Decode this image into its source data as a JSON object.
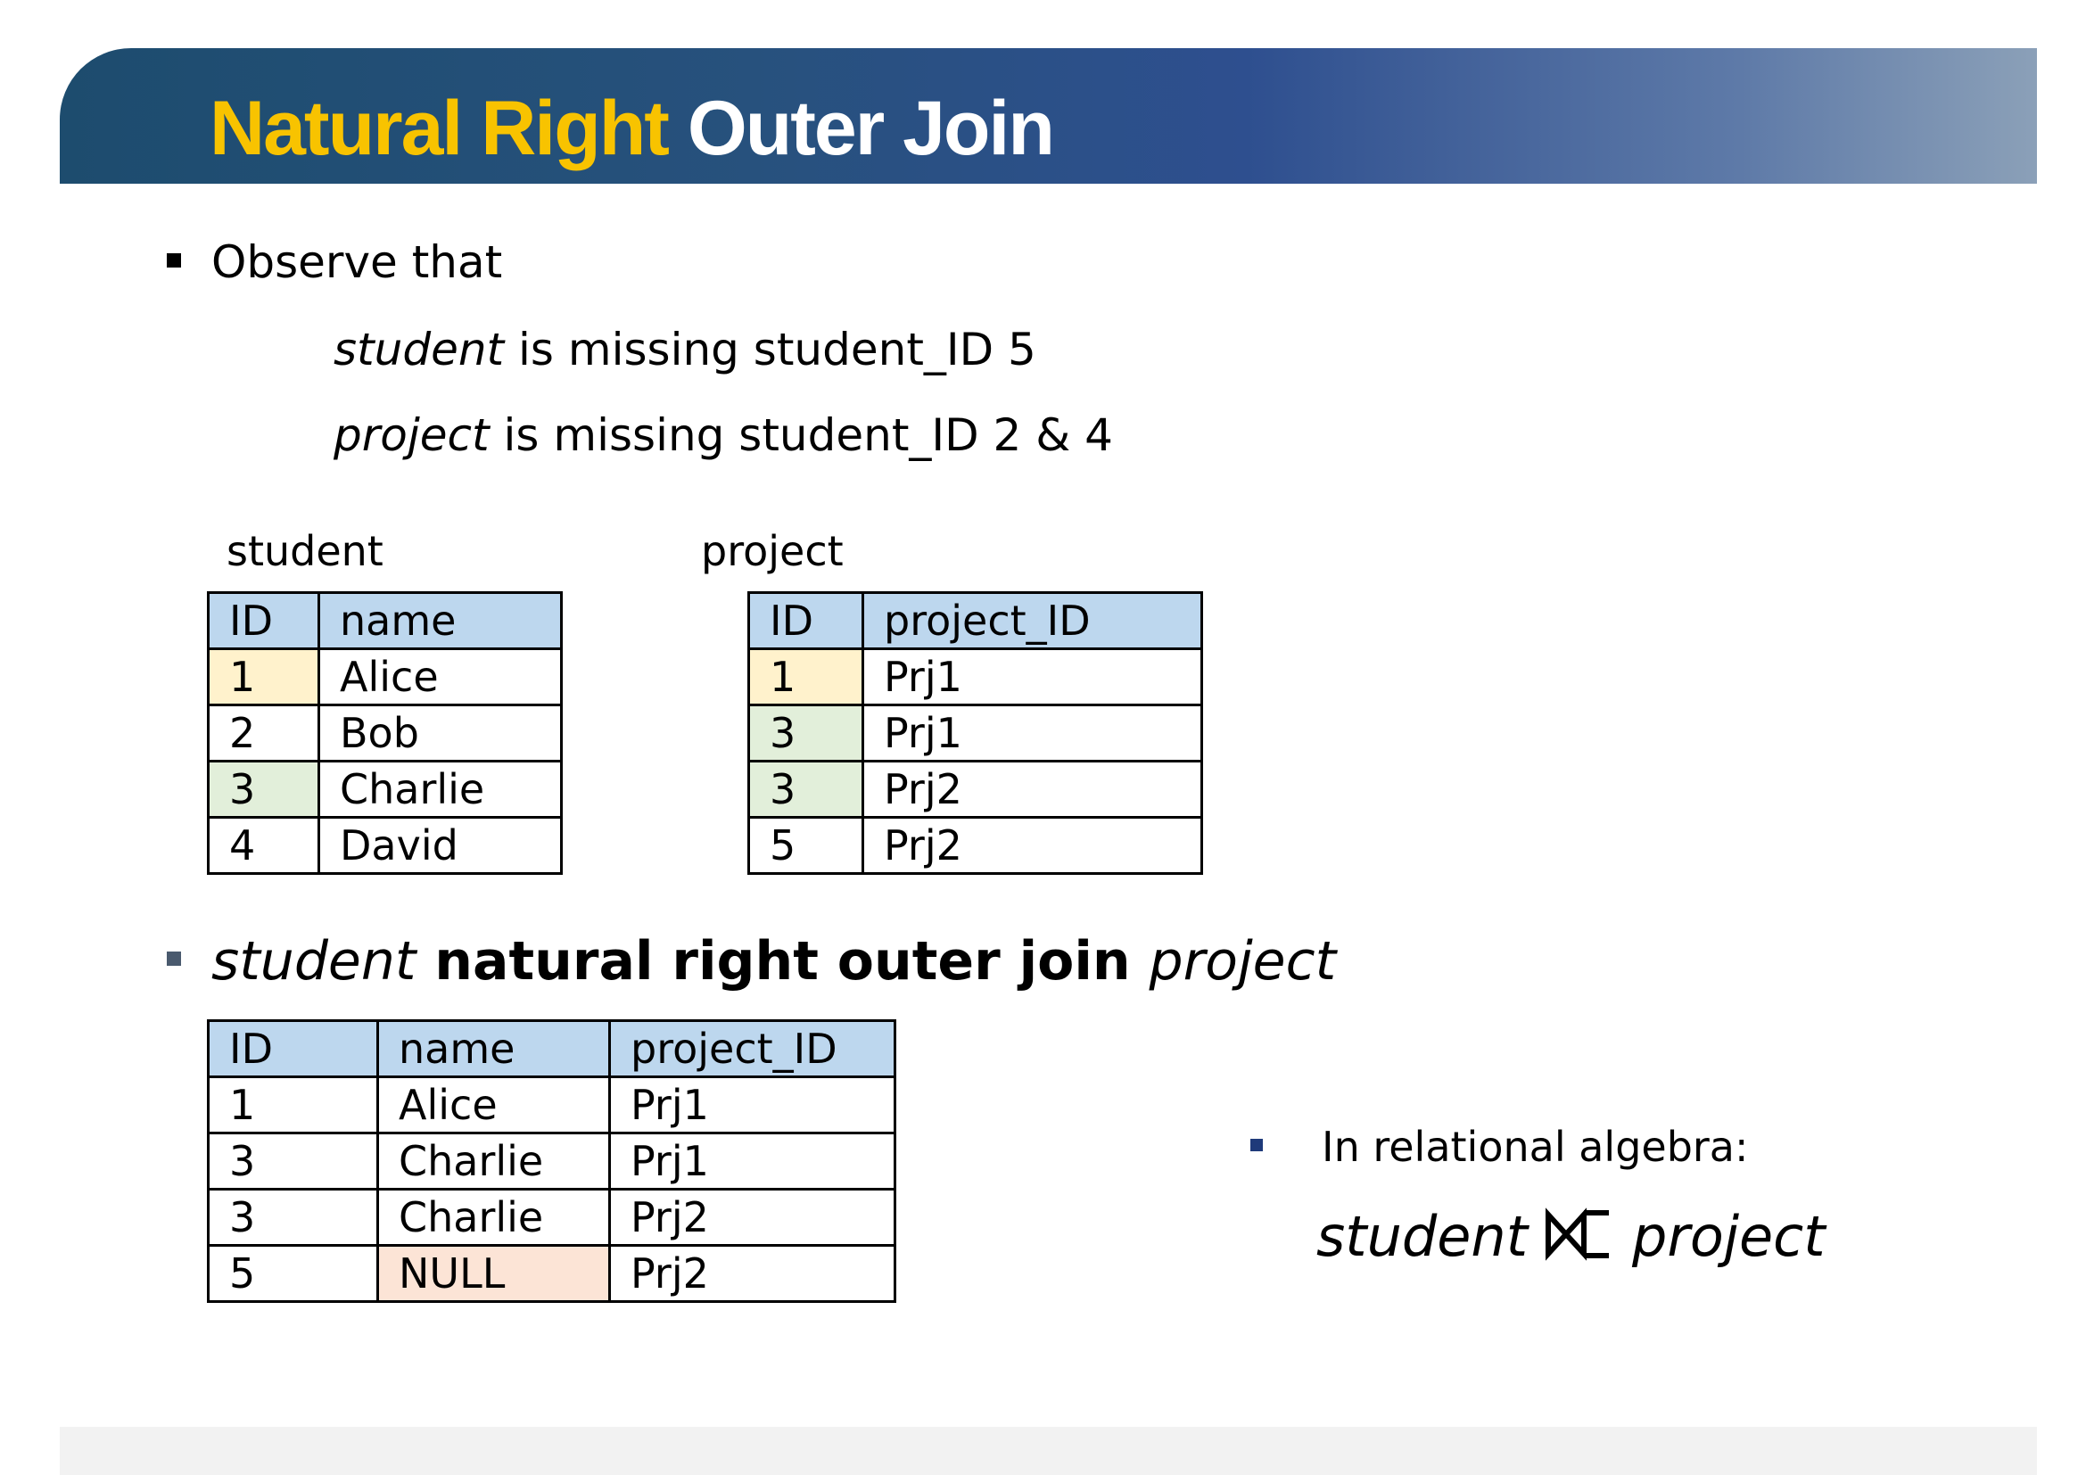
{
  "title": {
    "part1": "Natural Right",
    "part2": "Outer Join"
  },
  "observe": {
    "bullet": "Observe that",
    "line1": {
      "rel": "student",
      "text": " is missing student_ID 5"
    },
    "line2": {
      "rel": "project",
      "text": " is missing student_ID 2 & 4"
    }
  },
  "student_table": {
    "caption": "student",
    "headers": [
      "ID",
      "name"
    ],
    "rows": [
      [
        "1",
        "Alice"
      ],
      [
        "2",
        "Bob"
      ],
      [
        "3",
        "Charlie"
      ],
      [
        "4",
        "David"
      ]
    ]
  },
  "project_table": {
    "caption": "project",
    "headers": [
      "ID",
      "project_ID"
    ],
    "rows": [
      [
        "1",
        "Prj1"
      ],
      [
        "3",
        "Prj1"
      ],
      [
        "3",
        "Prj2"
      ],
      [
        "5",
        "Prj2"
      ]
    ]
  },
  "join_heading": {
    "left": "student",
    "middle": " natural right outer join ",
    "right": "project"
  },
  "result_table": {
    "headers": [
      "ID",
      "name",
      "project_ID"
    ],
    "rows": [
      [
        "1",
        "Alice",
        "Prj1"
      ],
      [
        "3",
        "Charlie",
        "Prj1"
      ],
      [
        "3",
        "Charlie",
        "Prj2"
      ],
      [
        "5",
        "NULL",
        "Prj2"
      ]
    ]
  },
  "algebra": {
    "bullet": "In relational algebra:",
    "left": "student",
    "right": "project",
    "operator_icon": "right-outer-join-symbol"
  },
  "colors": {
    "title_yellow": "#f8c300",
    "header_blue": "#bdd7ee",
    "match_yellow": "#fff2cc",
    "match_green": "#e2efda",
    "null_red": "#fce4d6"
  }
}
